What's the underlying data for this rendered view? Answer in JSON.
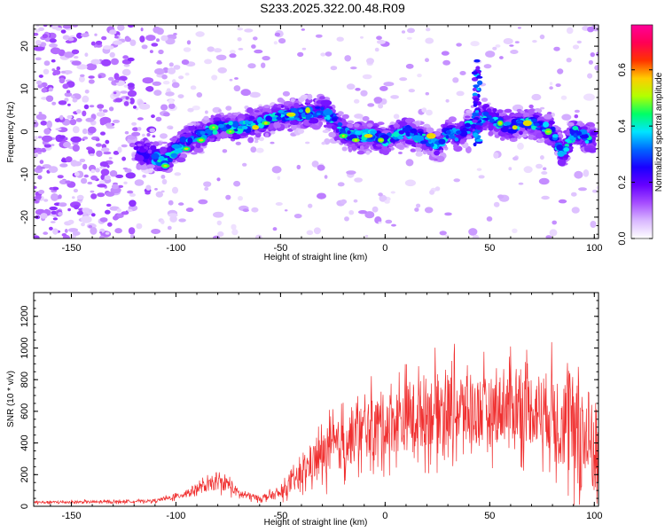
{
  "figure_title": "S233.2025.322.00.48.R09",
  "chart_data": [
    {
      "type": "heatmap",
      "title": "S233.2025.322.00.48.R09",
      "xlabel": "Height of straight line (km)",
      "ylabel": "Frequency (Hz)",
      "xlim": [
        -168,
        102
      ],
      "ylim": [
        -25,
        25
      ],
      "x_ticks": [
        -150,
        -100,
        -50,
        0,
        50,
        100
      ],
      "x_tick_labels": [
        "-150",
        "-100",
        "-50",
        "0",
        "50",
        "100"
      ],
      "y_ticks": [
        -20,
        -10,
        0,
        10,
        20
      ],
      "y_tick_labels": [
        "-20",
        "-10",
        "0",
        "10",
        "20"
      ],
      "colorbar": {
        "label": "Normalized spectral amplitude",
        "range": [
          0,
          0.76
        ],
        "ticks": [
          0.0,
          0.2,
          0.4,
          0.6
        ],
        "tick_labels": [
          "0.0",
          "0.2",
          "0.4",
          "0.6"
        ],
        "colormap": [
          "#ffffff",
          "#d9b8ff",
          "#a64dff",
          "#6600ff",
          "#1a00ff",
          "#0066ff",
          "#00e5ff",
          "#00ff66",
          "#b3ff00",
          "#ffcc00",
          "#ff3300",
          "#ff0055",
          "#ff0099"
        ]
      },
      "ridge": {
        "description": "dominant frequency vs height",
        "x": [
          -115,
          -105,
          -100,
          -95,
          -90,
          -80,
          -70,
          -60,
          -50,
          -40,
          -30,
          -25,
          -20,
          -15,
          -10,
          -5,
          0,
          5,
          10,
          20,
          25,
          30,
          35,
          40,
          44,
          48,
          55,
          60,
          65,
          70,
          75,
          80,
          85,
          90,
          95,
          100
        ],
        "y": [
          -5,
          -7,
          -4,
          -2,
          -1,
          1,
          1,
          2,
          4,
          4,
          5,
          3,
          0,
          -1,
          -1,
          -1,
          -2,
          -1,
          0,
          -2,
          -3,
          0,
          -1,
          1,
          2,
          4,
          2,
          1,
          2,
          2,
          1,
          0,
          -5,
          0,
          -1,
          -2
        ]
      },
      "noise_region_x": [
        -168,
        -100
      ],
      "spike": {
        "x": 44,
        "y_range": [
          -3,
          17
        ]
      }
    },
    {
      "type": "line",
      "title": "",
      "xlabel": "Height of straight line (km)",
      "ylabel": "SNR (10 * v/v)",
      "xlim": [
        -168,
        102
      ],
      "ylim": [
        0,
        1350
      ],
      "x_ticks": [
        -150,
        -100,
        -50,
        0,
        50,
        100
      ],
      "x_tick_labels": [
        "-150",
        "-100",
        "-50",
        "0",
        "50",
        "100"
      ],
      "y_ticks": [
        0,
        200,
        400,
        600,
        800,
        1000,
        1200
      ],
      "y_tick_labels": [
        "0",
        "200",
        "400",
        "600",
        "800",
        "1000",
        "1200"
      ],
      "color": "#f03030",
      "series": [
        {
          "name": "SNR",
          "envelope_x": [
            -168,
            -130,
            -110,
            -100,
            -90,
            -80,
            -75,
            -70,
            -60,
            -50,
            -40,
            -35,
            -30,
            -20,
            -10,
            0,
            10,
            20,
            30,
            40,
            50,
            60,
            70,
            80,
            85,
            90,
            95,
            100
          ],
          "envelope_mean": [
            25,
            28,
            35,
            60,
            110,
            150,
            140,
            80,
            50,
            80,
            200,
            280,
            320,
            400,
            480,
            520,
            560,
            600,
            620,
            600,
            600,
            640,
            620,
            600,
            550,
            480,
            420,
            380
          ],
          "envelope_spread": [
            15,
            15,
            15,
            30,
            60,
            80,
            80,
            50,
            30,
            60,
            150,
            200,
            250,
            300,
            320,
            350,
            380,
            400,
            420,
            400,
            380,
            400,
            420,
            450,
            550,
            650,
            650,
            600
          ]
        }
      ]
    }
  ]
}
